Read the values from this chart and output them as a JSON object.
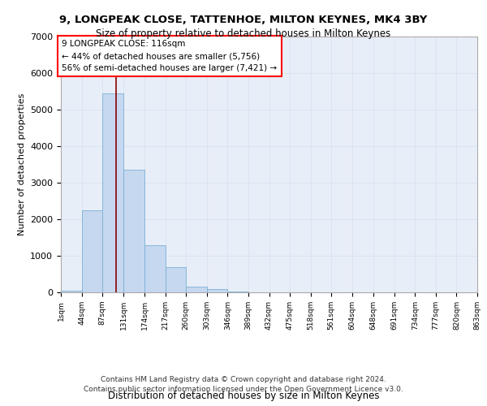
{
  "title": "9, LONGPEAK CLOSE, TATTENHOE, MILTON KEYNES, MK4 3BY",
  "subtitle": "Size of property relative to detached houses in Milton Keynes",
  "xlabel": "Distribution of detached houses by size in Milton Keynes",
  "ylabel": "Number of detached properties",
  "footer_line1": "Contains HM Land Registry data © Crown copyright and database right 2024.",
  "footer_line2": "Contains public sector information licensed under the Open Government Licence v3.0.",
  "annotation_line1": "9 LONGPEAK CLOSE: 116sqm",
  "annotation_line2": "← 44% of detached houses are smaller (5,756)",
  "annotation_line3": "56% of semi-detached houses are larger (7,421) →",
  "property_size": 116,
  "bar_color": "#c5d8f0",
  "bar_edge_color": "#7bafd4",
  "vline_color": "#8b0000",
  "grid_color": "#d8e4f0",
  "background_color": "#e8eef8",
  "bin_edges": [
    1,
    44,
    87,
    131,
    174,
    217,
    260,
    303,
    346,
    389,
    432,
    475,
    518,
    561,
    604,
    648,
    691,
    734,
    777,
    820,
    863
  ],
  "bar_values": [
    50,
    2250,
    5450,
    3350,
    1300,
    680,
    155,
    80,
    30,
    0,
    0,
    0,
    0,
    0,
    0,
    0,
    0,
    0,
    0,
    0
  ],
  "ylim": [
    0,
    7000
  ],
  "yticks": [
    0,
    1000,
    2000,
    3000,
    4000,
    5000,
    6000,
    7000
  ],
  "tick_labels": [
    "1sqm",
    "44sqm",
    "87sqm",
    "131sqm",
    "174sqm",
    "217sqm",
    "260sqm",
    "303sqm",
    "346sqm",
    "389sqm",
    "432sqm",
    "475sqm",
    "518sqm",
    "561sqm",
    "604sqm",
    "648sqm",
    "691sqm",
    "734sqm",
    "777sqm",
    "820sqm",
    "863sqm"
  ]
}
